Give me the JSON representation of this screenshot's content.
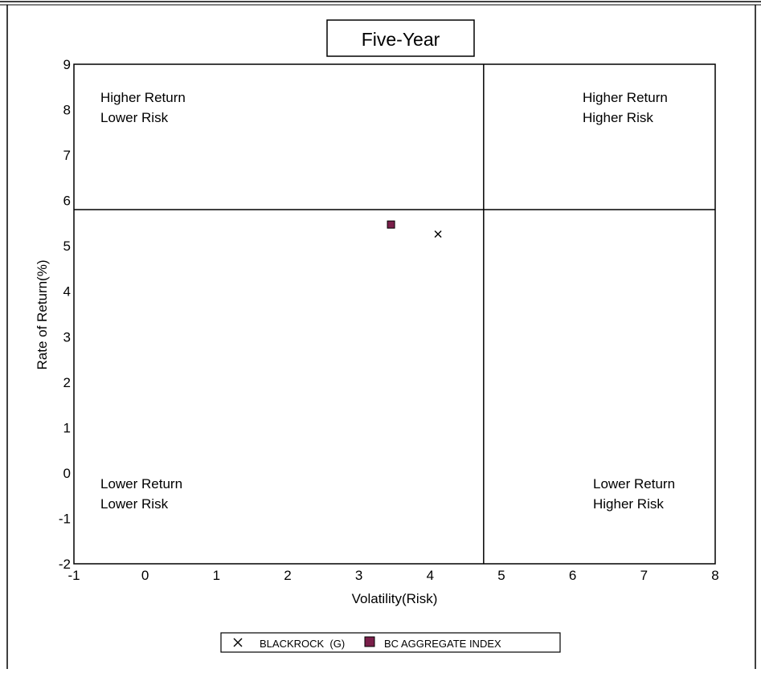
{
  "chart_data": {
    "type": "scatter",
    "title": "Five-Year",
    "xlabel": "Volatility(Risk)",
    "ylabel": "Rate of Return(%)",
    "xlim": [
      -1,
      8
    ],
    "ylim": [
      -2,
      9
    ],
    "xticks": [
      "-1",
      "0",
      "1",
      "2",
      "3",
      "4",
      "5",
      "6",
      "7",
      "8"
    ],
    "yticks": [
      "-2",
      "-1",
      "0",
      "1",
      "2",
      "3",
      "4",
      "5",
      "6",
      "7",
      "8",
      "9"
    ],
    "grid": false,
    "divider_x": 4.75,
    "divider_y": 5.8,
    "quadrant_labels": {
      "top_left": [
        "Higher Return",
        "Lower Risk"
      ],
      "top_right": [
        "Higher Return",
        "Higher Risk"
      ],
      "bottom_left": [
        "Lower Return",
        "Lower Risk"
      ],
      "bottom_right": [
        "Lower Return",
        "Higher Risk"
      ]
    },
    "series": [
      {
        "name": "BLACKROCK  (G)",
        "marker": "x",
        "color": "#000000",
        "x": 4.11,
        "y": 5.26
      },
      {
        "name": "BC AGGREGATE INDEX",
        "marker": "square",
        "color": "#7a1f4a",
        "x": 3.45,
        "y": 5.47
      }
    ],
    "legend_placement": "bottom-center"
  }
}
